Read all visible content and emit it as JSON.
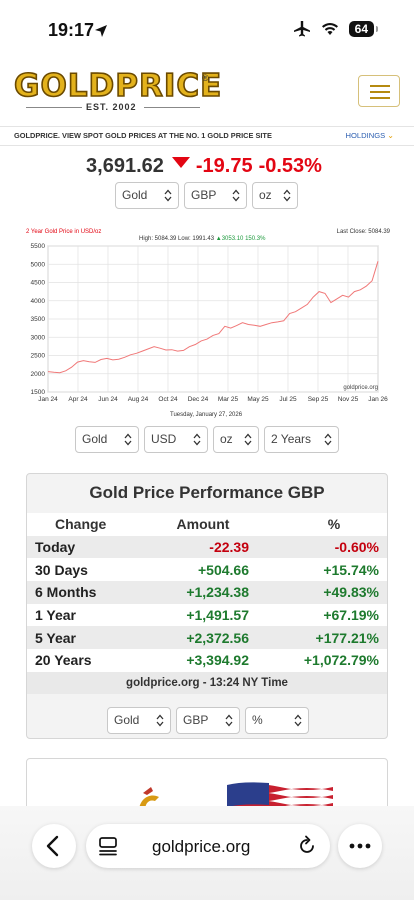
{
  "status": {
    "time": "19:17",
    "battery": "64"
  },
  "header": {
    "logo_text": "GOLDPRICE",
    "logo_est": "EST. 2002",
    "logo_reg": "®"
  },
  "tagline": "GOLDPRICE. VIEW SPOT GOLD PRICES AT THE NO. 1 GOLD PRICE SITE",
  "holdings": {
    "label": "HOLDINGS",
    "chevron": "⌄"
  },
  "price": {
    "value": "3,691.62",
    "change": "-19.75",
    "change_pct": "-0.53%"
  },
  "top_selects": {
    "metal": "Gold",
    "currency": "GBP",
    "unit": "oz"
  },
  "chart_data": {
    "type": "line",
    "title": "2 Year Gold Price in USD/oz",
    "stats": {
      "high_label": "High: 5084.39",
      "low_label": "Low: 1991.43",
      "change_label": "3053.10",
      "change_pct_label": "150.3%",
      "last_close_label": "Last Close: 5084.39"
    },
    "watermark": "goldprice.org",
    "date_label": "Tuesday, January 27, 2026",
    "x_ticks": [
      "Jan 24",
      "Apr 24",
      "Jun 24",
      "Aug 24",
      "Oct 24",
      "Dec 24",
      "Mar 25",
      "May 25",
      "Jul 25",
      "Sep 25",
      "Nov 25",
      "Jan 26"
    ],
    "y_ticks": [
      "5500",
      "5000",
      "4500",
      "4000",
      "3500",
      "3000",
      "2500",
      "2000",
      "1500"
    ],
    "ylim": [
      1500,
      5500
    ],
    "series": [
      {
        "values": [
          2060,
          2040,
          2030,
          2080,
          2180,
          2320,
          2360,
          2330,
          2310,
          2390,
          2420,
          2380,
          2400,
          2450,
          2520,
          2560,
          2620,
          2680,
          2740,
          2700,
          2650,
          2660,
          2620,
          2640,
          2740,
          2800,
          2900,
          2950,
          3050,
          3100,
          3300,
          3250,
          3320,
          3400,
          3350,
          3330,
          3300,
          3350,
          3400,
          3420,
          3450,
          3650,
          3700,
          3800,
          3900,
          4100,
          4250,
          4200,
          3950,
          4050,
          4150,
          4100,
          4250,
          4300,
          4400,
          4550,
          5084
        ]
      }
    ]
  },
  "chart_selects": {
    "metal": "Gold",
    "currency": "USD",
    "unit": "oz",
    "period": "2 Years"
  },
  "performance": {
    "title": "Gold Price Performance GBP",
    "headers": [
      "Change",
      "Amount",
      "%"
    ],
    "rows": [
      {
        "label": "Today",
        "amount": "-22.39",
        "pct": "-0.60%"
      },
      {
        "label": "30 Days",
        "amount": "+504.66",
        "pct": "+15.74%"
      },
      {
        "label": "6 Months",
        "amount": "+1,234.38",
        "pct": "+49.83%"
      },
      {
        "label": "1 Year",
        "amount": "+1,491.57",
        "pct": "+67.19%"
      },
      {
        "label": "5 Year",
        "amount": "+2,372.56",
        "pct": "+177.21%"
      },
      {
        "label": "20 Years",
        "amount": "+3,394.92",
        "pct": "+1,072.79%"
      }
    ],
    "footer": "goldprice.org - 13:24 NY Time",
    "selects": {
      "metal": "Gold",
      "currency": "GBP",
      "unit": "%"
    }
  },
  "browser": {
    "url": "goldprice.org"
  },
  "colors": {
    "accent_gold": "#e3b21c",
    "down_red": "#e30613",
    "up_green": "#1e7a2e",
    "link_blue": "#2a5db0"
  }
}
